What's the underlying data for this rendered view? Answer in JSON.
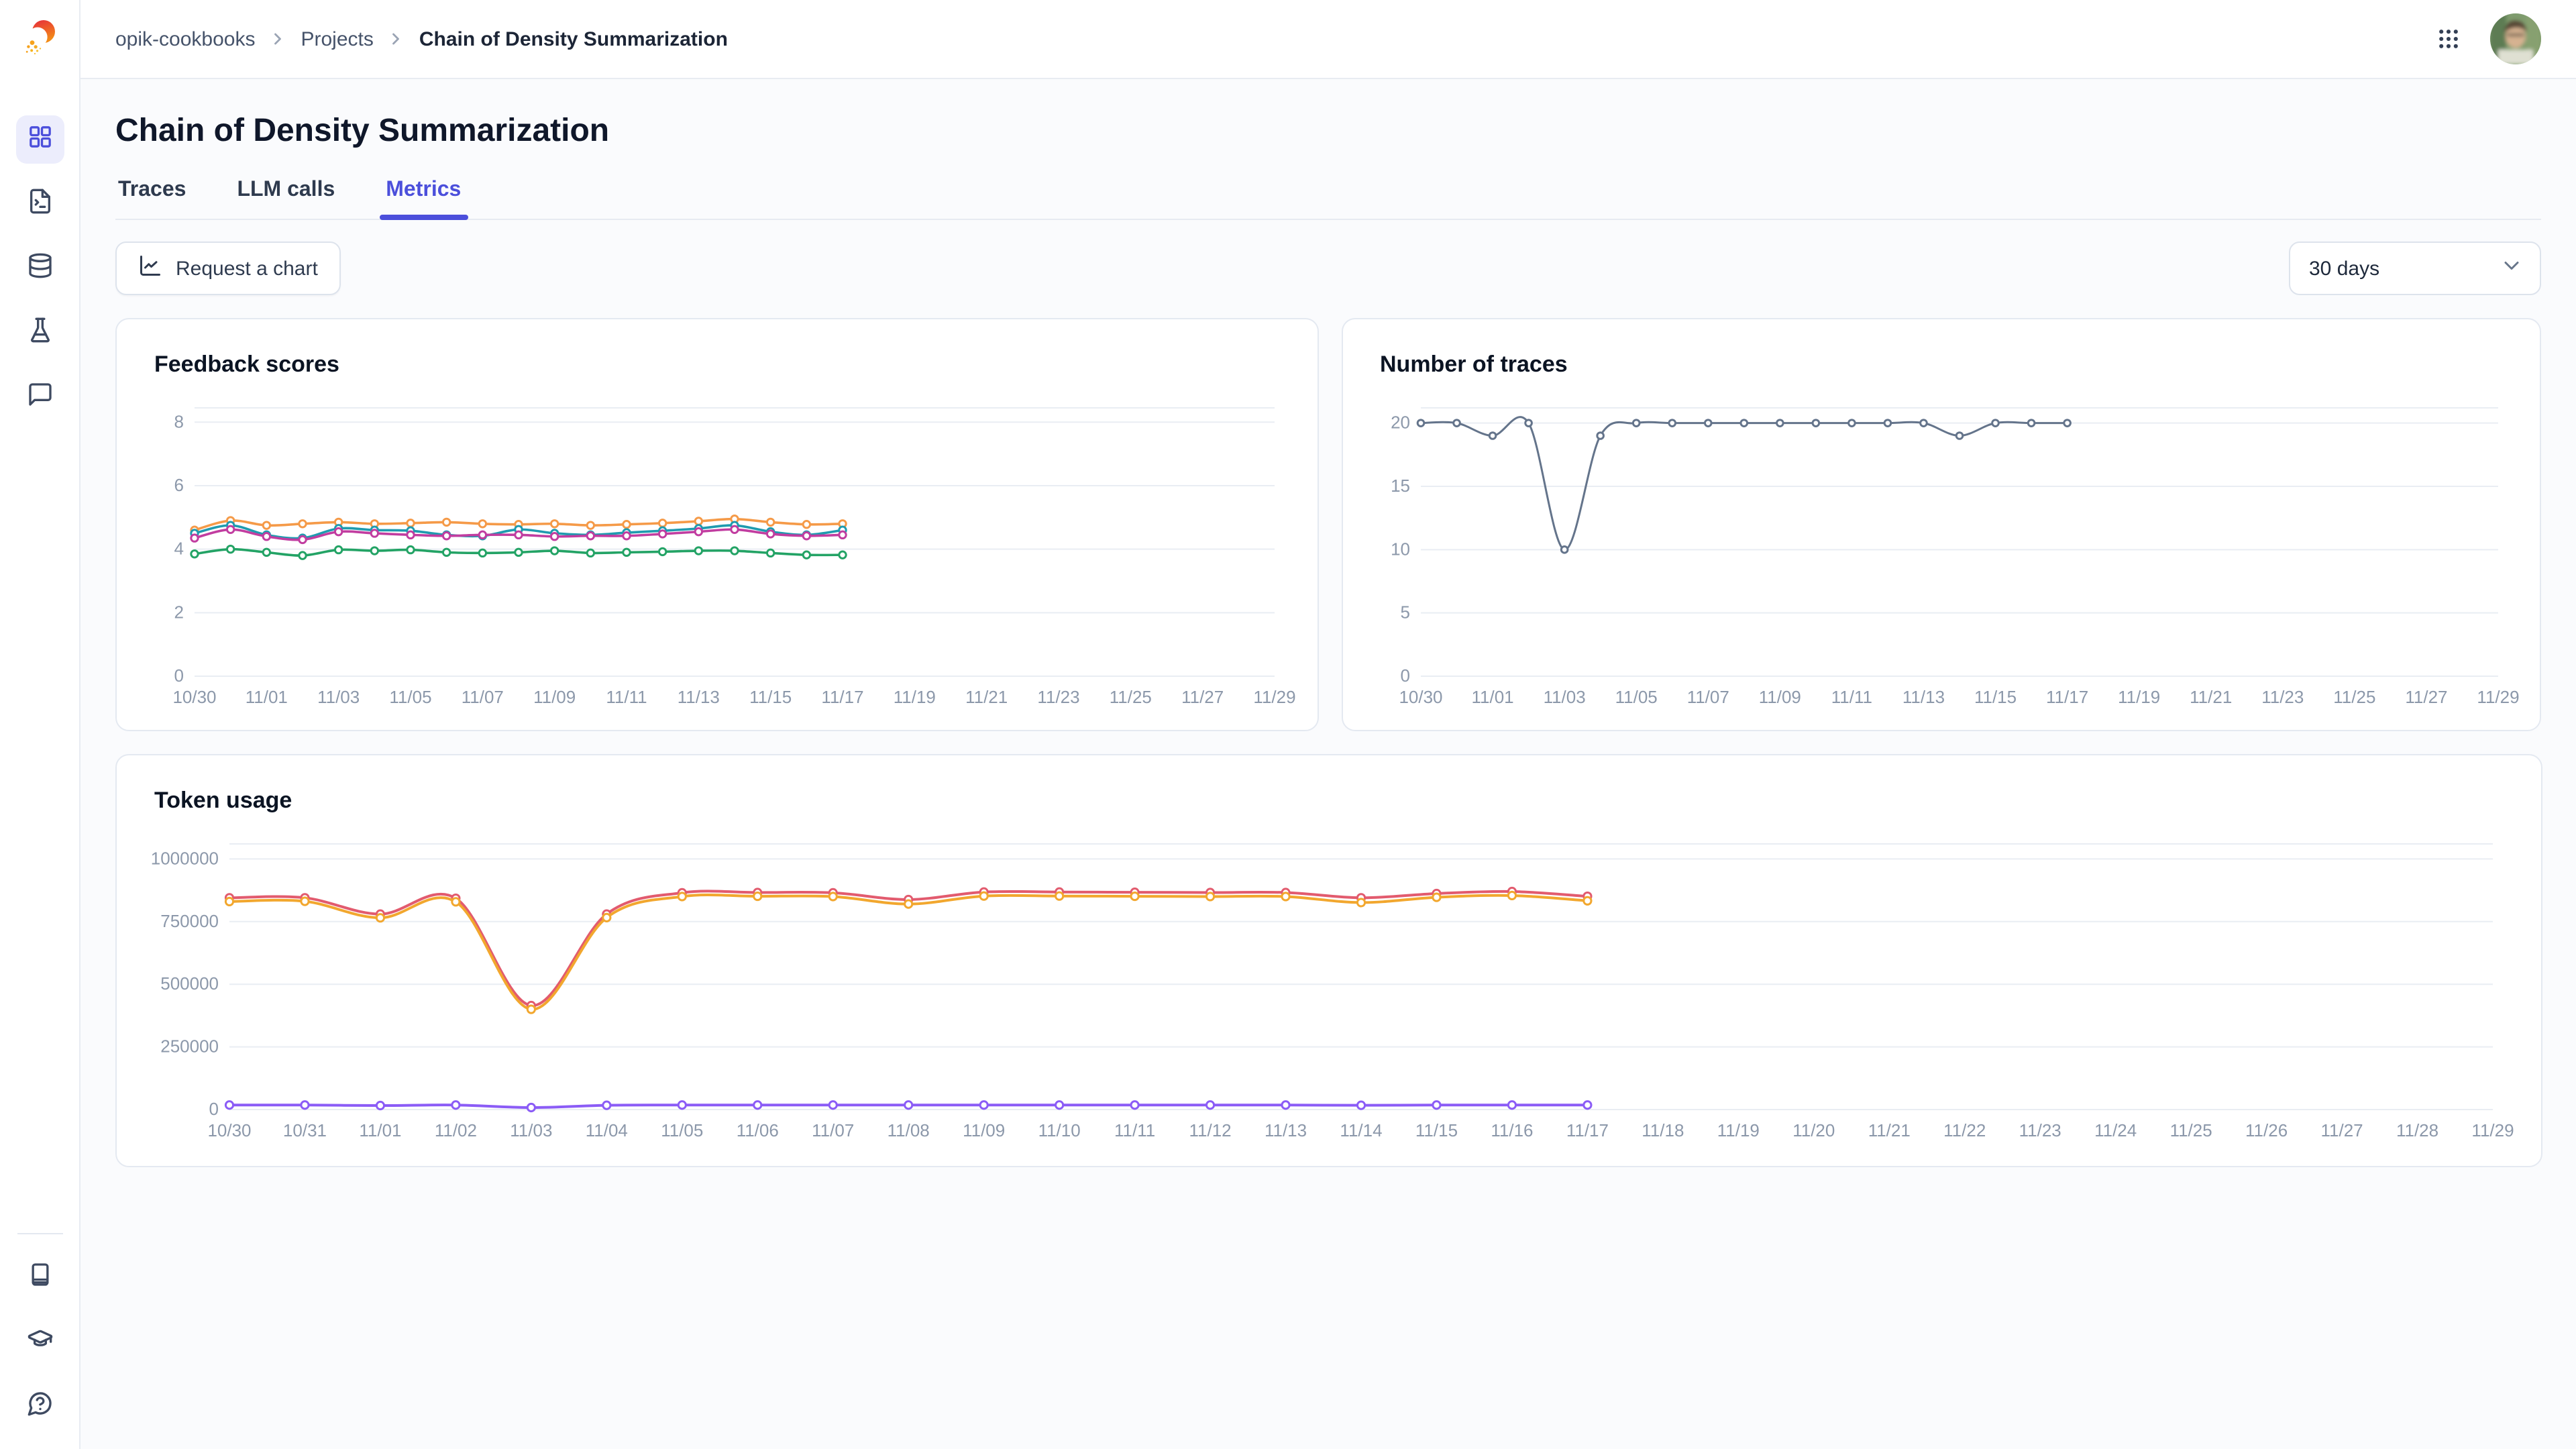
{
  "header": {
    "breadcrumb": {
      "items": [
        "opik-cookbooks",
        "Projects",
        "Chain of Density Summarization"
      ]
    }
  },
  "sidebar": {
    "top_icons": [
      "grid-icon",
      "file-terminal-icon",
      "database-icon",
      "flask-icon",
      "message-square-icon"
    ],
    "bottom_icons": [
      "book-icon",
      "graduation-cap-icon",
      "help-bubble-icon"
    ]
  },
  "page": {
    "title": "Chain of Density Summarization",
    "tabs": [
      {
        "label": "Traces",
        "active": false
      },
      {
        "label": "LLM calls",
        "active": false
      },
      {
        "label": "Metrics",
        "active": true
      }
    ],
    "toolbar": {
      "request_chart_label": "Request a chart",
      "range_selected": "30 days"
    }
  },
  "colors": {
    "accent": "#4b4fdb",
    "grid_line": "#e9edf3",
    "axis_label": "#8c98aa"
  },
  "chart_data": [
    {
      "type": "line",
      "title": "Feedback scores",
      "x": [
        "10/30",
        "10/31",
        "11/01",
        "11/02",
        "11/03",
        "11/04",
        "11/05",
        "11/06",
        "11/07",
        "11/08",
        "11/09",
        "11/10",
        "11/11",
        "11/12",
        "11/13",
        "11/14",
        "11/15",
        "11/16",
        "11/17",
        "11/18",
        "11/19",
        "11/20",
        "11/21",
        "11/22",
        "11/23",
        "11/24",
        "11/25",
        "11/26",
        "11/27",
        "11/28",
        "11/29"
      ],
      "x_tick_step": 2,
      "yticks": [
        0,
        2,
        4,
        6,
        8
      ],
      "ylim": [
        0,
        8.45
      ],
      "grid": true,
      "legend": "none",
      "series": [
        {
          "name": "orange",
          "color": "#f59a48",
          "values": [
            4.6,
            4.9,
            4.75,
            4.8,
            4.85,
            4.8,
            4.82,
            4.85,
            4.8,
            4.78,
            4.8,
            4.75,
            4.78,
            4.82,
            4.88,
            4.95,
            4.85,
            4.78,
            4.8
          ]
        },
        {
          "name": "teal",
          "color": "#1f9baf",
          "values": [
            4.5,
            4.75,
            4.45,
            4.35,
            4.65,
            4.6,
            4.58,
            4.45,
            4.42,
            4.62,
            4.5,
            4.45,
            4.52,
            4.58,
            4.65,
            4.75,
            4.55,
            4.45,
            4.6
          ]
        },
        {
          "name": "magenta",
          "color": "#c13da0",
          "values": [
            4.35,
            4.62,
            4.4,
            4.3,
            4.55,
            4.5,
            4.45,
            4.42,
            4.45,
            4.45,
            4.4,
            4.42,
            4.42,
            4.48,
            4.55,
            4.62,
            4.48,
            4.42,
            4.45
          ]
        },
        {
          "name": "green",
          "color": "#23a365",
          "values": [
            3.85,
            4.0,
            3.9,
            3.8,
            3.98,
            3.95,
            3.98,
            3.9,
            3.88,
            3.9,
            3.95,
            3.88,
            3.9,
            3.92,
            3.95,
            3.95,
            3.88,
            3.82,
            3.82
          ]
        }
      ]
    },
    {
      "type": "line",
      "title": "Number of traces",
      "x": [
        "10/30",
        "10/31",
        "11/01",
        "11/02",
        "11/03",
        "11/04",
        "11/05",
        "11/06",
        "11/07",
        "11/08",
        "11/09",
        "11/10",
        "11/11",
        "11/12",
        "11/13",
        "11/14",
        "11/15",
        "11/16",
        "11/17",
        "11/18",
        "11/19",
        "11/20",
        "11/21",
        "11/22",
        "11/23",
        "11/24",
        "11/25",
        "11/26",
        "11/27",
        "11/28",
        "11/29"
      ],
      "x_tick_step": 2,
      "yticks": [
        0,
        5,
        10,
        15,
        20
      ],
      "ylim": [
        0,
        21.2
      ],
      "grid": true,
      "legend": "none",
      "series": [
        {
          "name": "traces",
          "color": "#64748b",
          "values": [
            20,
            20,
            19,
            20,
            10,
            19,
            20,
            20,
            20,
            20,
            20,
            20,
            20,
            20,
            20,
            19,
            20,
            20,
            20
          ]
        }
      ]
    },
    {
      "type": "line",
      "title": "Token usage",
      "x": [
        "10/30",
        "10/31",
        "11/01",
        "11/02",
        "11/03",
        "11/04",
        "11/05",
        "11/06",
        "11/07",
        "11/08",
        "11/09",
        "11/10",
        "11/11",
        "11/12",
        "11/13",
        "11/14",
        "11/15",
        "11/16",
        "11/17",
        "11/18",
        "11/19",
        "11/20",
        "11/21",
        "11/22",
        "11/23",
        "11/24",
        "11/25",
        "11/26",
        "11/27",
        "11/28",
        "11/29"
      ],
      "x_tick_step": 1,
      "yticks": [
        0,
        250000,
        500000,
        750000,
        1000000
      ],
      "ylim": [
        0,
        1060000
      ],
      "grid": true,
      "legend": "none",
      "series": [
        {
          "name": "red",
          "color": "#e25b6e",
          "values": [
            845000,
            845000,
            780000,
            843000,
            415000,
            780000,
            865000,
            866000,
            865000,
            838000,
            868000,
            868000,
            867000,
            866000,
            866000,
            845000,
            862000,
            870000,
            851000
          ]
        },
        {
          "name": "amber",
          "color": "#f2a72e",
          "values": [
            830000,
            831000,
            765000,
            829000,
            400000,
            766000,
            850000,
            851000,
            850000,
            820000,
            852000,
            852000,
            851000,
            850000,
            850000,
            826000,
            847000,
            854000,
            833000
          ]
        },
        {
          "name": "purple",
          "color": "#8b5cf6",
          "values": [
            18000,
            18000,
            16000,
            18000,
            8000,
            17000,
            18000,
            18000,
            18000,
            18000,
            18000,
            18000,
            18000,
            18000,
            18000,
            17000,
            18000,
            18000,
            18000
          ]
        }
      ]
    }
  ]
}
